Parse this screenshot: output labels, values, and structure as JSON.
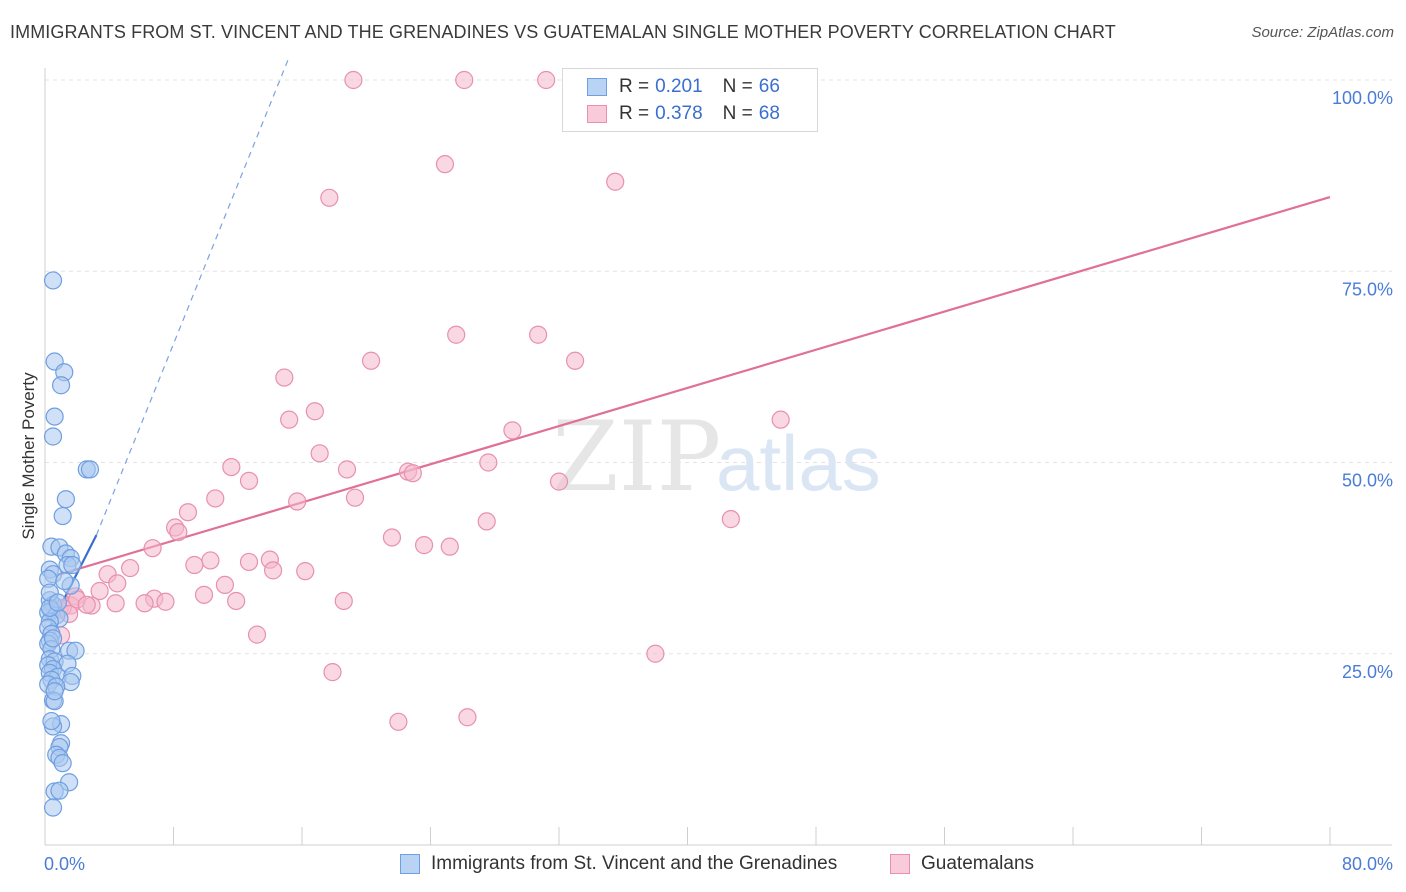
{
  "title": "IMMIGRANTS FROM ST. VINCENT AND THE GRENADINES VS GUATEMALAN SINGLE MOTHER POVERTY CORRELATION CHART",
  "source": "Source: ZipAtlas.com",
  "watermark": {
    "zip": "ZIP",
    "atlas": "atlas"
  },
  "legend_top": [
    {
      "r_label": "R = ",
      "r_value": "0.201",
      "n_label": "N = ",
      "n_value": "66"
    },
    {
      "r_label": "R = ",
      "r_value": "0.378",
      "n_label": "N = ",
      "n_value": "68"
    }
  ],
  "colors": {
    "blue_fill": "#a9c8f0",
    "blue_stroke": "#6f9fe0",
    "blue_line": "#3a6fd0",
    "pink_fill": "#f4b8cc",
    "pink_stroke": "#e890ad",
    "pink_line": "#e07098",
    "grid": "#e3e3e3",
    "axis_text": "#4a7cd6"
  },
  "chart_data": {
    "type": "scatter",
    "ylabel": "Single Mother Poverty",
    "xlim": [
      0,
      80
    ],
    "ylim": [
      0,
      100
    ],
    "x_tick_labels": [
      {
        "value": 0,
        "label": "0.0%"
      },
      {
        "value": 80,
        "label": "80.0%"
      }
    ],
    "y_tick_labels": [
      {
        "value": 25,
        "label": "25.0%"
      },
      {
        "value": 50,
        "label": "50.0%"
      },
      {
        "value": 75,
        "label": "75.0%"
      },
      {
        "value": 100,
        "label": "100.0%"
      }
    ],
    "legend_position": "top-center",
    "series": [
      {
        "name": "Immigrants from St. Vincent and the Grenadines",
        "color": "blue",
        "R": 0.201,
        "N": 66,
        "trend": {
          "x0": 0.3,
          "y0": 28.5,
          "x1": 3.2,
          "y1": 40.5,
          "dash_to_x": 15.2,
          "dash_to_y": 103
        },
        "points": [
          [
            0.5,
            73.8
          ],
          [
            0.6,
            63.2
          ],
          [
            1.2,
            61.8
          ],
          [
            1.0,
            60.1
          ],
          [
            0.6,
            56.0
          ],
          [
            0.5,
            53.4
          ],
          [
            2.6,
            49.1
          ],
          [
            2.8,
            49.1
          ],
          [
            1.3,
            45.2
          ],
          [
            1.1,
            43.0
          ],
          [
            0.4,
            39.0
          ],
          [
            0.9,
            38.9
          ],
          [
            1.3,
            38.1
          ],
          [
            1.6,
            37.5
          ],
          [
            1.4,
            36.6
          ],
          [
            1.7,
            36.6
          ],
          [
            0.3,
            36.0
          ],
          [
            0.5,
            35.4
          ],
          [
            0.2,
            34.8
          ],
          [
            1.6,
            33.9
          ],
          [
            0.3,
            32.0
          ],
          [
            0.5,
            31.4
          ],
          [
            0.4,
            30.6
          ],
          [
            0.2,
            30.4
          ],
          [
            0.7,
            30.0
          ],
          [
            0.9,
            29.6
          ],
          [
            0.3,
            29.2
          ],
          [
            0.2,
            28.4
          ],
          [
            0.4,
            27.6
          ],
          [
            0.3,
            26.7
          ],
          [
            0.2,
            26.3
          ],
          [
            0.4,
            25.6
          ],
          [
            1.5,
            25.4
          ],
          [
            1.9,
            25.4
          ],
          [
            0.3,
            24.3
          ],
          [
            0.6,
            24.0
          ],
          [
            1.4,
            23.7
          ],
          [
            0.2,
            23.5
          ],
          [
            0.5,
            23.0
          ],
          [
            0.3,
            22.5
          ],
          [
            0.8,
            22.0
          ],
          [
            1.7,
            22.1
          ],
          [
            0.4,
            21.6
          ],
          [
            1.6,
            21.3
          ],
          [
            0.2,
            21.0
          ],
          [
            0.7,
            20.7
          ],
          [
            0.5,
            18.9
          ],
          [
            0.6,
            18.8
          ],
          [
            1.0,
            15.8
          ],
          [
            0.5,
            15.5
          ],
          [
            1.0,
            13.3
          ],
          [
            0.9,
            12.8
          ],
          [
            0.7,
            11.8
          ],
          [
            0.9,
            11.4
          ],
          [
            1.1,
            10.7
          ],
          [
            1.5,
            8.2
          ],
          [
            0.6,
            7.0
          ],
          [
            0.9,
            7.1
          ],
          [
            0.5,
            4.9
          ],
          [
            0.3,
            31.0
          ],
          [
            0.5,
            27.0
          ],
          [
            0.3,
            33.0
          ],
          [
            0.6,
            20.1
          ],
          [
            0.4,
            16.2
          ],
          [
            1.2,
            34.5
          ],
          [
            0.8,
            31.7
          ]
        ]
      },
      {
        "name": "Guatemalans",
        "color": "pink",
        "R": 0.378,
        "N": 68,
        "trend": {
          "x0": 0.8,
          "y0": 35.3,
          "x1": 80,
          "y1": 84.7
        },
        "points": [
          [
            19.2,
            100
          ],
          [
            26.1,
            100
          ],
          [
            31.2,
            100
          ],
          [
            38.2,
            100
          ],
          [
            24.9,
            89.0
          ],
          [
            35.5,
            86.7
          ],
          [
            17.7,
            84.6
          ],
          [
            25.6,
            66.7
          ],
          [
            30.7,
            66.7
          ],
          [
            20.3,
            63.3
          ],
          [
            33.0,
            63.3
          ],
          [
            14.9,
            61.1
          ],
          [
            16.8,
            56.7
          ],
          [
            15.2,
            55.6
          ],
          [
            45.8,
            55.6
          ],
          [
            29.1,
            54.2
          ],
          [
            17.1,
            51.2
          ],
          [
            27.6,
            50.0
          ],
          [
            11.6,
            49.4
          ],
          [
            18.8,
            49.1
          ],
          [
            22.6,
            48.8
          ],
          [
            22.9,
            48.6
          ],
          [
            12.7,
            47.6
          ],
          [
            32.0,
            47.5
          ],
          [
            10.6,
            45.3
          ],
          [
            19.3,
            45.4
          ],
          [
            15.7,
            44.9
          ],
          [
            8.9,
            43.5
          ],
          [
            27.5,
            42.3
          ],
          [
            42.7,
            42.6
          ],
          [
            8.1,
            41.5
          ],
          [
            8.3,
            40.9
          ],
          [
            21.6,
            40.2
          ],
          [
            23.6,
            39.2
          ],
          [
            25.2,
            39.0
          ],
          [
            6.7,
            38.8
          ],
          [
            10.3,
            37.2
          ],
          [
            12.7,
            37.0
          ],
          [
            14.0,
            37.3
          ],
          [
            9.3,
            36.6
          ],
          [
            5.3,
            36.2
          ],
          [
            14.2,
            35.9
          ],
          [
            16.2,
            35.8
          ],
          [
            3.9,
            35.4
          ],
          [
            11.2,
            34.0
          ],
          [
            4.5,
            34.2
          ],
          [
            3.4,
            33.2
          ],
          [
            1.9,
            32.5
          ],
          [
            6.8,
            32.2
          ],
          [
            7.5,
            31.8
          ],
          [
            11.9,
            31.9
          ],
          [
            1.6,
            31.3
          ],
          [
            2.0,
            32.1
          ],
          [
            2.9,
            31.3
          ],
          [
            4.4,
            31.6
          ],
          [
            6.2,
            31.6
          ],
          [
            9.9,
            32.7
          ],
          [
            18.6,
            31.9
          ],
          [
            2.6,
            31.4
          ],
          [
            0.9,
            30.8
          ],
          [
            1.1,
            31.0
          ],
          [
            1.5,
            30.2
          ],
          [
            13.2,
            27.5
          ],
          [
            1.0,
            27.4
          ],
          [
            38.0,
            25.0
          ],
          [
            17.9,
            22.6
          ],
          [
            22.0,
            16.1
          ],
          [
            26.3,
            16.7
          ]
        ]
      }
    ]
  },
  "bottom_legend": [
    {
      "label": "Immigrants from St. Vincent and the Grenadines"
    },
    {
      "label": "Guatemalans"
    }
  ]
}
